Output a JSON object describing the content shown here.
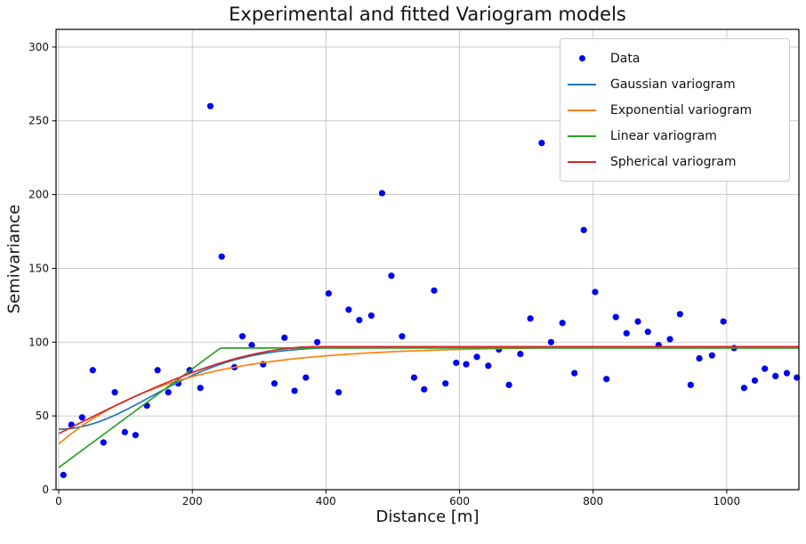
{
  "title": "Experimental and fitted Variogram models",
  "chart_data": {
    "type": "scatter",
    "title": "Experimental and fitted Variogram models",
    "xlabel": "Distance [m]",
    "ylabel": "Semivariance",
    "xlim": [
      -4,
      1108
    ],
    "ylim": [
      0,
      312
    ],
    "x_ticks": [
      0,
      200,
      400,
      600,
      800,
      1000
    ],
    "y_ticks": [
      0,
      50,
      100,
      150,
      200,
      250,
      300
    ],
    "grid": true,
    "grid_color": "#c6c6c6",
    "legend_position": "upper right",
    "scatter": {
      "name": "Data",
      "color": "#0000ee",
      "marker": "circle",
      "points": [
        [
          7,
          10
        ],
        [
          19,
          44
        ],
        [
          35,
          49
        ],
        [
          51,
          81
        ],
        [
          67,
          32
        ],
        [
          84,
          66
        ],
        [
          99,
          39
        ],
        [
          115,
          37
        ],
        [
          132,
          57
        ],
        [
          148,
          81
        ],
        [
          164,
          66
        ],
        [
          179,
          72
        ],
        [
          196,
          81
        ],
        [
          212,
          69
        ],
        [
          227,
          260
        ],
        [
          244,
          158
        ],
        [
          263,
          83
        ],
        [
          275,
          104
        ],
        [
          289,
          98
        ],
        [
          306,
          85
        ],
        [
          323,
          72
        ],
        [
          338,
          103
        ],
        [
          353,
          67
        ],
        [
          370,
          76
        ],
        [
          387,
          100
        ],
        [
          404,
          133
        ],
        [
          419,
          66
        ],
        [
          434,
          122
        ],
        [
          450,
          115
        ],
        [
          468,
          118
        ],
        [
          484,
          201
        ],
        [
          498,
          145
        ],
        [
          514,
          104
        ],
        [
          532,
          76
        ],
        [
          547,
          68
        ],
        [
          562,
          135
        ],
        [
          579,
          72
        ],
        [
          595,
          86
        ],
        [
          610,
          85
        ],
        [
          626,
          90
        ],
        [
          643,
          84
        ],
        [
          659,
          95
        ],
        [
          674,
          71
        ],
        [
          691,
          92
        ],
        [
          706,
          116
        ],
        [
          723,
          235
        ],
        [
          737,
          100
        ],
        [
          754,
          113
        ],
        [
          772,
          79
        ],
        [
          786,
          176
        ],
        [
          803,
          134
        ],
        [
          820,
          75
        ],
        [
          834,
          117
        ],
        [
          850,
          106
        ],
        [
          867,
          114
        ],
        [
          882,
          107
        ],
        [
          898,
          98
        ],
        [
          915,
          102
        ],
        [
          930,
          119
        ],
        [
          946,
          71
        ],
        [
          959,
          89
        ],
        [
          978,
          91
        ],
        [
          995,
          114
        ],
        [
          1011,
          96
        ],
        [
          1026,
          69
        ],
        [
          1042,
          74
        ],
        [
          1057,
          82
        ],
        [
          1073,
          77
        ],
        [
          1090,
          79
        ],
        [
          1105,
          76
        ]
      ]
    },
    "models": [
      {
        "name": "Gaussian variogram",
        "type": "gaussian",
        "nugget": 41,
        "sill": 97,
        "range": 195,
        "color": "#1f77b4"
      },
      {
        "name": "Exponential variogram",
        "type": "exponential",
        "nugget": 31,
        "sill": 97,
        "range": 170,
        "color": "#ff7f0e"
      },
      {
        "name": "Linear variogram",
        "type": "linear",
        "nugget": 15,
        "sill": 96,
        "range": 242,
        "color": "#2ca02c"
      },
      {
        "name": "Spherical variogram",
        "type": "spherical",
        "nugget": 38,
        "sill": 97,
        "range": 390,
        "color": "#d62728"
      }
    ]
  }
}
